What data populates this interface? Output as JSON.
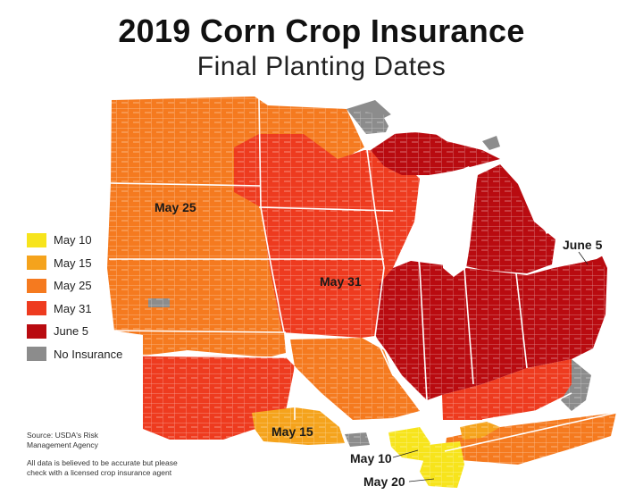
{
  "title": "2019 Corn Crop Insurance",
  "subtitle": "Final Planting Dates",
  "legend": [
    {
      "label": "May 10",
      "color": "#f7e41c"
    },
    {
      "label": "May 15",
      "color": "#f5a31c"
    },
    {
      "label": "May 25",
      "color": "#f57a1f"
    },
    {
      "label": "May 31",
      "color": "#ee3b1f"
    },
    {
      "label": "June 5",
      "color": "#b90b10"
    },
    {
      "label": "No Insurance",
      "color": "#8c8c8c"
    }
  ],
  "map_labels": {
    "may25": "May 25",
    "may31": "May 31",
    "june5": "June 5",
    "may15": "May 15",
    "may10": "May 10",
    "may20": "May 20"
  },
  "source": "Source: USDA's Risk Management Agency",
  "disclaimer": "All data is believed to be accurate but please check with a licensed crop insurance agent",
  "colors": {
    "water": "#ffffff",
    "state_border": "#ffffff"
  }
}
